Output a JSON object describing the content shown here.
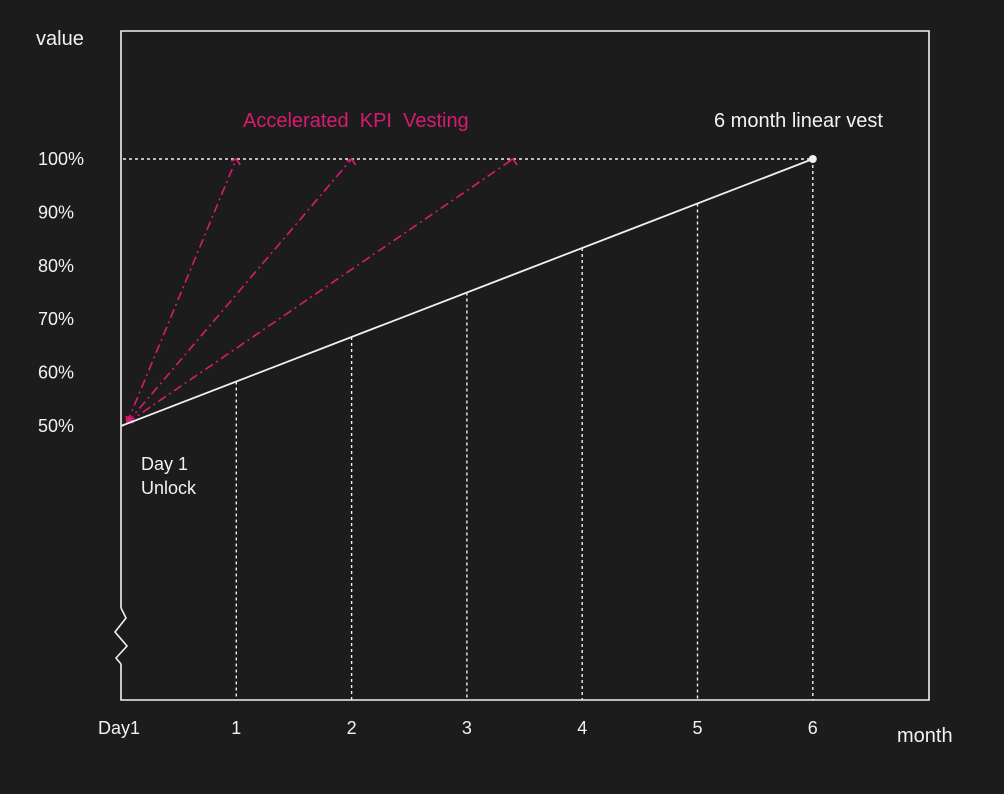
{
  "chart_data": {
    "type": "line",
    "y_axis_title": "value",
    "x_axis_title": "month",
    "x_ticks": [
      "Day1",
      "1",
      "2",
      "3",
      "4",
      "5",
      "6"
    ],
    "y_ticks": [
      "100%",
      "90%",
      "80%",
      "70%",
      "60%",
      "50%"
    ],
    "y_tick_values": [
      100,
      90,
      80,
      70,
      60,
      50
    ],
    "xlim": [
      0,
      6
    ],
    "ylim": [
      0,
      105
    ],
    "axis_break": true,
    "grid": false,
    "series": [
      {
        "name": "6 month linear vest",
        "style": "solid",
        "color": "#f0f0f0",
        "points": [
          [
            0,
            50
          ],
          [
            6,
            100
          ]
        ],
        "end_marker": true
      }
    ],
    "accelerated_series": [
      {
        "style": "dash-dot",
        "color": "#d81b70",
        "points": [
          [
            0,
            50
          ],
          [
            1,
            100
          ]
        ]
      },
      {
        "style": "dash-dot",
        "color": "#d81b70",
        "points": [
          [
            0,
            50
          ],
          [
            2,
            100
          ]
        ]
      },
      {
        "style": "dash-dot",
        "color": "#d81b70",
        "points": [
          [
            0,
            50
          ],
          [
            3.4,
            100
          ]
        ]
      }
    ],
    "month_guides": [
      1,
      2,
      3,
      4,
      5,
      6
    ],
    "max_guide_value": 100,
    "annotations": {
      "accelerated": "Accelerated  KPI  Vesting",
      "linear": "6 month linear vest",
      "unlock_line1": "Day 1",
      "unlock_line2": "Unlock"
    },
    "colors": {
      "background": "#1c1c1c",
      "axis": "#f0f0f0",
      "accent": "#d81b70",
      "text": "#f2f2f2"
    }
  }
}
